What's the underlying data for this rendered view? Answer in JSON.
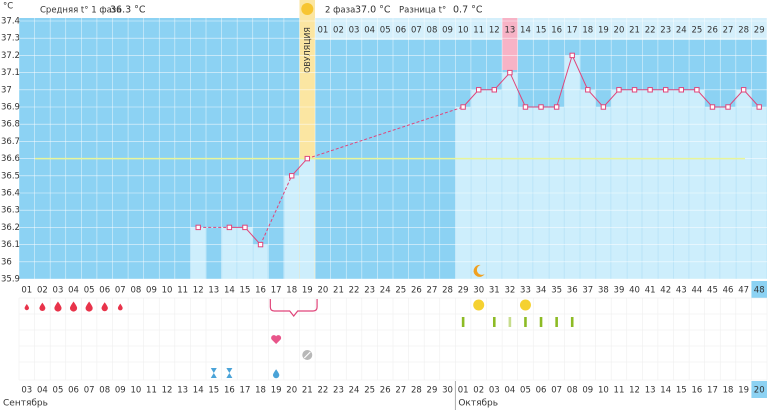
{
  "chart_data": {
    "type": "line",
    "y_label": "°C",
    "header": {
      "phase1_label": "Средняя t° 1 фаза",
      "phase1_value": "36.3 °C",
      "phase2_label": "2 фаза",
      "phase2_value": "37.0 °C",
      "diff_label": "Разница t°",
      "diff_value": "0.7 °C"
    },
    "ovulation_label": "ОВУЛЯЦИЯ",
    "categories": [
      "01",
      "02",
      "03",
      "04",
      "05",
      "06",
      "07",
      "08",
      "09",
      "10",
      "11",
      "12",
      "13",
      "14",
      "15",
      "16",
      "17",
      "18",
      "19",
      "20",
      "21",
      "22",
      "23",
      "24",
      "25",
      "26",
      "27",
      "28",
      "29",
      "30",
      "31",
      "32",
      "33",
      "34",
      "35",
      "36",
      "37",
      "38",
      "39",
      "40",
      "41",
      "42",
      "43",
      "44",
      "45",
      "46",
      "47",
      "48"
    ],
    "series": [
      {
        "name": "Температура",
        "color": "#e0457a",
        "values": [
          null,
          null,
          null,
          null,
          null,
          null,
          null,
          null,
          null,
          null,
          null,
          36.2,
          null,
          36.2,
          36.2,
          36.1,
          null,
          36.5,
          36.6,
          null,
          null,
          null,
          null,
          null,
          null,
          null,
          null,
          null,
          36.9,
          37.0,
          37.0,
          37.1,
          36.9,
          36.9,
          36.9,
          37.2,
          37.0,
          36.9,
          37.0,
          37.0,
          37.0,
          37.0,
          37.0,
          37.0,
          36.9,
          36.9,
          37.0,
          36.9
        ]
      }
    ],
    "coverline": 36.6,
    "luteal_days": [
      "01",
      "02",
      "03",
      "04",
      "05",
      "06",
      "07",
      "08",
      "09",
      "10",
      "11",
      "12",
      "13",
      "14",
      "15",
      "16",
      "17",
      "18",
      "19",
      "20",
      "21",
      "22",
      "23",
      "24",
      "25",
      "26",
      "27",
      "28",
      "29"
    ],
    "dates": [
      "03",
      "04",
      "05",
      "06",
      "07",
      "08",
      "09",
      "10",
      "11",
      "12",
      "13",
      "14",
      "15",
      "16",
      "17",
      "18",
      "19",
      "20",
      "21",
      "22",
      "23",
      "24",
      "25",
      "26",
      "27",
      "28",
      "29",
      "30",
      "01",
      "02",
      "03",
      "04",
      "05",
      "06",
      "07",
      "08",
      "09",
      "10",
      "11",
      "12",
      "13",
      "14",
      "15",
      "16",
      "17",
      "18",
      "19",
      "20"
    ],
    "date_weekend": [
      true,
      false,
      false,
      false,
      false,
      false,
      true,
      true,
      false,
      false,
      false,
      false,
      false,
      true,
      true,
      false,
      false,
      false,
      false,
      false,
      true,
      true,
      false,
      false,
      false,
      false,
      false,
      true,
      true,
      false,
      false,
      false,
      false,
      false,
      true,
      true,
      false,
      false,
      false,
      false,
      false,
      true,
      true,
      false,
      false,
      false,
      false,
      false
    ],
    "months": [
      "Сентябрь",
      "Октябрь"
    ],
    "ylim": [
      35.9,
      37.4
    ],
    "yticks": [
      35.9,
      36,
      36.1,
      36.2,
      36.3,
      36.4,
      36.5,
      36.6,
      36.7,
      36.8,
      36.9,
      37,
      37.1,
      37.2,
      37.3,
      37.4
    ],
    "grid": true
  }
}
